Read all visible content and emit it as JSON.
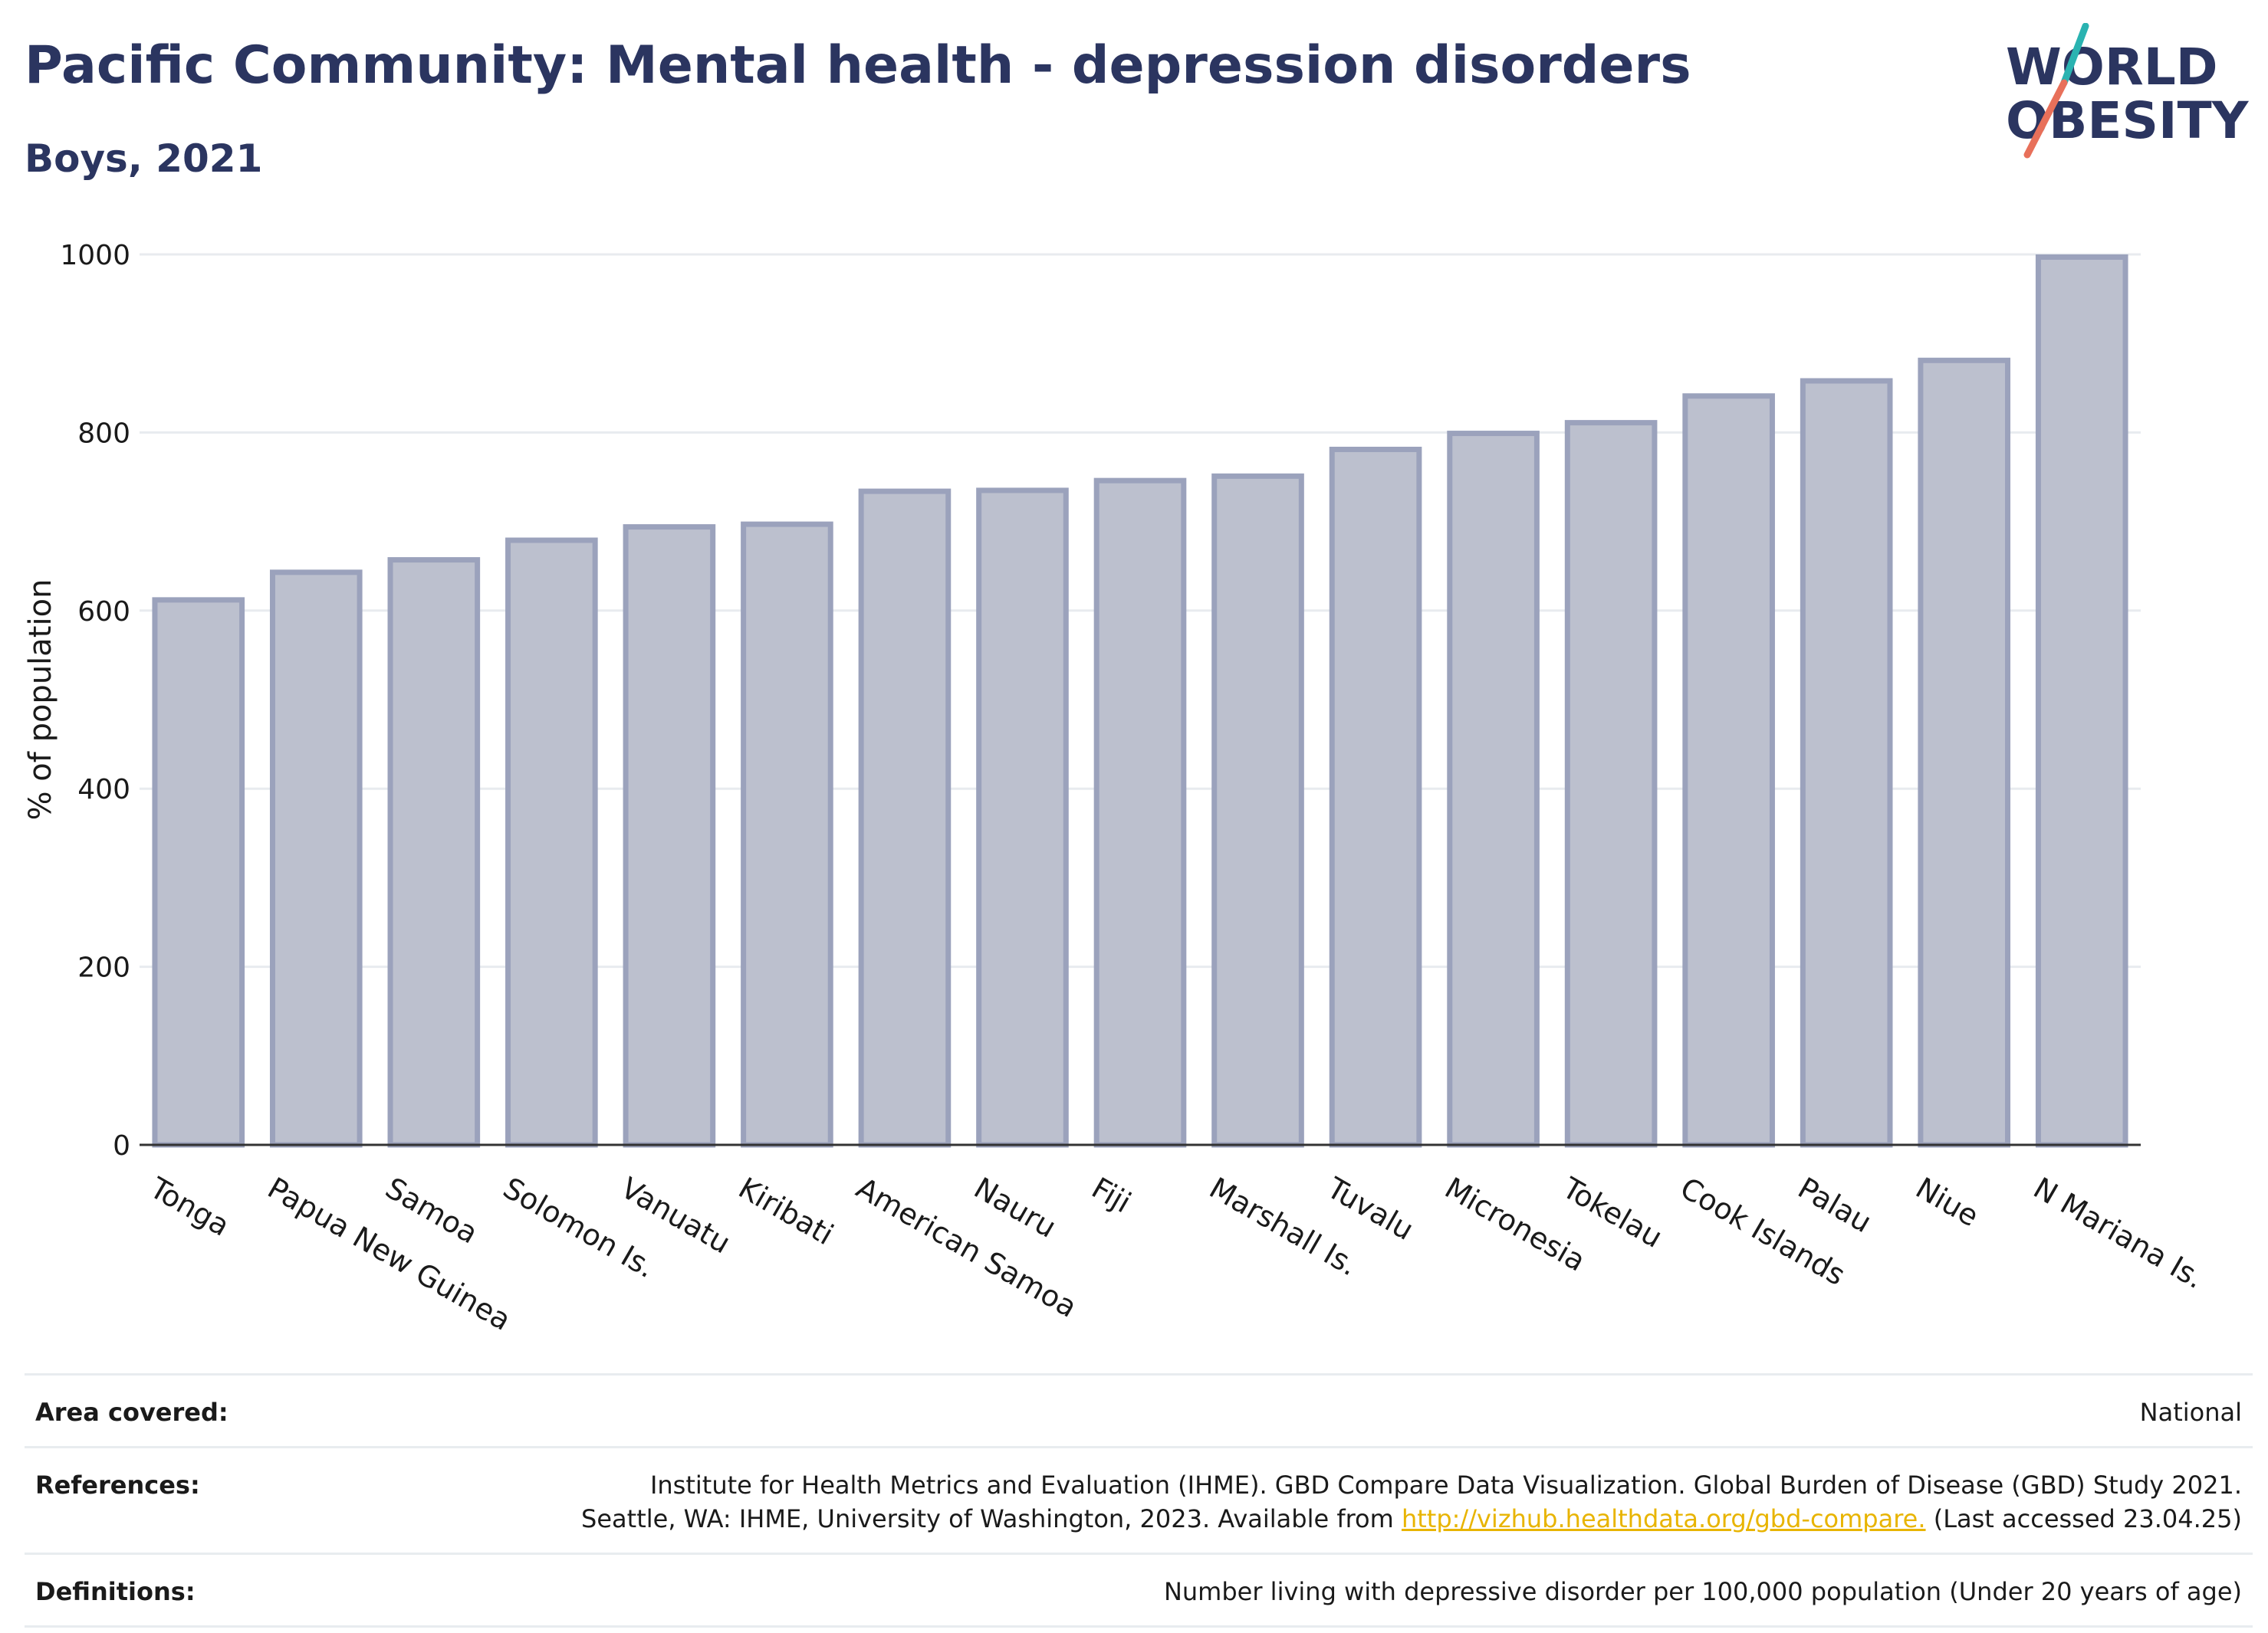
{
  "header": {
    "title": "Pacific Community: Mental health - depression disorders",
    "subtitle": "Boys, 2021"
  },
  "logo": {
    "line1": "WORLD",
    "line2": "OBESITY",
    "colors": {
      "text": "#2b3560",
      "teal": "#2ab3b1",
      "coral": "#e8705a"
    }
  },
  "chart_data": {
    "type": "bar",
    "title": "Pacific Community: Mental health - depression disorders",
    "subtitle": "Boys, 2021",
    "ylabel": "% of population",
    "xlabel": "",
    "ylim": [
      0,
      1000
    ],
    "yticks": [
      0,
      200,
      400,
      600,
      800,
      1000
    ],
    "grid": true,
    "bar_color": "#bcc0ce",
    "bar_edge_color": "#9ba2bc",
    "categories": [
      "Tonga",
      "Papua New Guinea",
      "Samoa",
      "Solomon Is.",
      "Vanuatu",
      "Kiribati",
      "American Samoa",
      "Nauru",
      "Fiji",
      "Marshall Is.",
      "Tuvalu",
      "Micronesia",
      "Tokelau",
      "Cook Islands",
      "Palau",
      "Niue",
      "N Mariana Is."
    ],
    "values": [
      612,
      643,
      657,
      679,
      694,
      697,
      734,
      735,
      746,
      751,
      781,
      799,
      811,
      841,
      858,
      881,
      997
    ]
  },
  "footer": {
    "area_label": "Area covered:",
    "area_value": "National",
    "references_label": "References:",
    "references_line1": "Institute for Health Metrics and Evaluation (IHME). GBD Compare Data Visualization. Global Burden of Disease (GBD) Study 2021.",
    "references_line2_pre": "Seattle, WA: IHME, University of Washington, 2023. Available from ",
    "references_link": "http://vizhub.healthdata.org/gbd-compare.",
    "references_line2_post": " (Last accessed 23.04.25)",
    "definitions_label": "Definitions:",
    "definitions_value": "Number living with depressive disorder per 100,000 population (Under 20 years of age)"
  }
}
